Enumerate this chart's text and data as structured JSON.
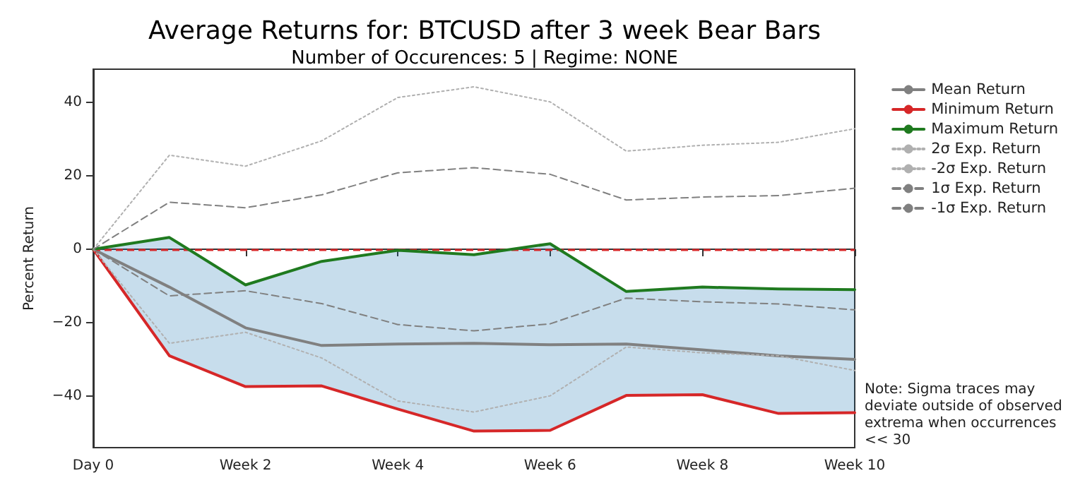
{
  "chart_data": {
    "type": "line",
    "title": "Average Returns for: BTCUSD after 3 week Bear Bars",
    "subtitle": "Number of Occurences: 5 | Regime: NONE",
    "ylabel": "Percent Return",
    "categories": [
      "Day 0",
      null,
      "Week 2",
      null,
      "Week 4",
      null,
      "Week 6",
      null,
      "Week 8",
      null,
      "Week 10"
    ],
    "series": [
      {
        "name": "Mean Return",
        "color": "#808080",
        "line_style": "solid",
        "values": [
          0,
          -10.3,
          -21.4,
          -26.2,
          -25.8,
          -25.6,
          -26,
          -25.8,
          -27.4,
          -29,
          -30
        ],
        "lower": [
          0,
          -29,
          -37.4,
          -37.2,
          -43.5,
          -49.5,
          -49.3,
          -39.8,
          -39.6,
          -44.7,
          -44.5
        ],
        "upper": [
          0,
          3.2,
          -9.7,
          -3.3,
          -0.3,
          -1.5,
          1.5,
          -11.5,
          -10.3,
          -10.8,
          -11
        ]
      },
      {
        "name": "Minimum Return",
        "color": "#d62728",
        "line_style": "solid",
        "values": [
          0,
          -29,
          -37.4,
          -37.2,
          -43.5,
          -49.5,
          -49.3,
          -39.8,
          -39.6,
          -44.7,
          -44.5
        ]
      },
      {
        "name": "Maximum Return",
        "color": "#1f7a1f",
        "line_style": "solid",
        "values": [
          0,
          3.2,
          -9.7,
          -3.3,
          -0.3,
          -1.5,
          1.5,
          -11.5,
          -10.3,
          -10.8,
          -11
        ]
      },
      {
        "name": "2σ Exp. Return",
        "color": "#b0b0b0",
        "line_style": "dotted",
        "values": [
          0,
          25.6,
          22.6,
          29.5,
          41.3,
          44.2,
          40.1,
          26.7,
          28.3,
          29.1,
          32.8
        ]
      },
      {
        "name": "-2σ Exp. Return",
        "color": "#b0b0b0",
        "line_style": "dotted",
        "values": [
          0,
          -25.6,
          -22.6,
          -29.6,
          -41.3,
          -44.3,
          -39.9,
          -26.6,
          -28.2,
          -29,
          -33
        ]
      },
      {
        "name": "1σ Exp. Return",
        "color": "#808080",
        "line_style": "dashed",
        "values": [
          0,
          12.8,
          11.3,
          14.8,
          20.8,
          22.2,
          20.4,
          13.4,
          14.2,
          14.6,
          16.6
        ]
      },
      {
        "name": "-1σ Exp. Return",
        "color": "#808080",
        "line_style": "dashed",
        "values": [
          0,
          -12.7,
          -11.3,
          -14.8,
          -20.5,
          -22.2,
          -20.3,
          -13.3,
          -14.3,
          -14.9,
          -16.5
        ]
      }
    ],
    "ylim": [
      -54,
      49
    ],
    "yticks": [
      {
        "value": -40,
        "label": "−40"
      },
      {
        "value": -20,
        "label": "−20"
      },
      0,
      20,
      40
    ],
    "ref_lines": [
      {
        "axis": "y",
        "value": 0,
        "color": "#d62728",
        "line_style": "dashed"
      }
    ],
    "annotations": [
      "Note: Sigma traces may deviate outside of observed extrema when occurrences << 30"
    ],
    "grid": false,
    "legend": "top right",
    "marker": "none"
  }
}
